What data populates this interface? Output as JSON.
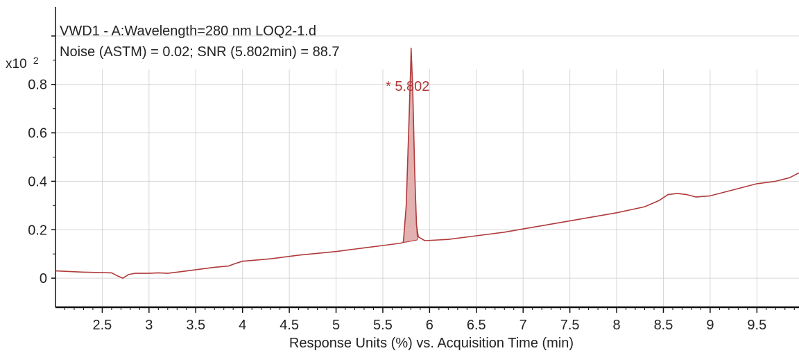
{
  "colors": {
    "trace": "#b03a3a",
    "peak_fill": "#e4b1b1",
    "grid": "#d6d6d6",
    "axis": "#111111",
    "text": "#222222"
  },
  "chart_data": {
    "type": "line",
    "title": "VWD1 - A:Wavelength=280 nm LOQ2-1.d",
    "subtitle": "Noise (ASTM) = 0.02; SNR (5.802min) = 88.7",
    "xlabel": "Response Units (%) vs. Acquisition Time (min)",
    "ylabel": "",
    "y_multiplier": "x10",
    "y_multiplier_exp": "2",
    "xlim": [
      2.0,
      9.95
    ],
    "ylim": [
      -0.12,
      1.12
    ],
    "xticks": [
      2.5,
      3,
      3.5,
      4,
      4.5,
      5,
      5.5,
      6,
      6.5,
      7,
      7.5,
      8,
      8.5,
      9,
      9.5
    ],
    "xtick_labels": [
      "2.5",
      "3",
      "3.5",
      "4",
      "4.5",
      "5",
      "5.5",
      "6",
      "6.5",
      "7",
      "7.5",
      "8",
      "8.5",
      "9",
      "9.5"
    ],
    "yticks": [
      0,
      0.2,
      0.4,
      0.6,
      0.8
    ],
    "ytick_labels": [
      "0",
      "0.2",
      "0.4",
      "0.6",
      "0.8"
    ],
    "grid": true,
    "peak_annotation": "* 5.802",
    "peak": {
      "rt": 5.802,
      "apex": 0.95,
      "start": 5.72,
      "end": 5.87,
      "baseline_start": 0.147,
      "baseline_end": 0.158
    },
    "series": [
      {
        "x": [
          2.0,
          2.3,
          2.6,
          2.66,
          2.72,
          2.78,
          2.85,
          3.0,
          3.1,
          3.2,
          3.3,
          3.5,
          3.7,
          3.85,
          3.92,
          4.0,
          4.3,
          4.6,
          5.0,
          5.3,
          5.5,
          5.7,
          5.72,
          5.75,
          5.78,
          5.8,
          5.802,
          5.82,
          5.84,
          5.86,
          5.88,
          5.95,
          6.2,
          6.5,
          6.8,
          7.1,
          7.4,
          7.7,
          8.0,
          8.3,
          8.45,
          8.55,
          8.65,
          8.75,
          8.85,
          9.0,
          9.2,
          9.4,
          9.5,
          9.7,
          9.85,
          9.95
        ],
        "y": [
          0.03,
          0.025,
          0.022,
          0.01,
          0.0,
          0.015,
          0.02,
          0.02,
          0.022,
          0.02,
          0.025,
          0.035,
          0.045,
          0.05,
          0.06,
          0.07,
          0.08,
          0.095,
          0.11,
          0.125,
          0.135,
          0.145,
          0.15,
          0.3,
          0.65,
          0.9,
          0.95,
          0.78,
          0.45,
          0.22,
          0.17,
          0.155,
          0.16,
          0.175,
          0.19,
          0.21,
          0.23,
          0.25,
          0.27,
          0.295,
          0.32,
          0.345,
          0.35,
          0.345,
          0.335,
          0.34,
          0.36,
          0.38,
          0.39,
          0.4,
          0.415,
          0.435
        ]
      }
    ]
  }
}
